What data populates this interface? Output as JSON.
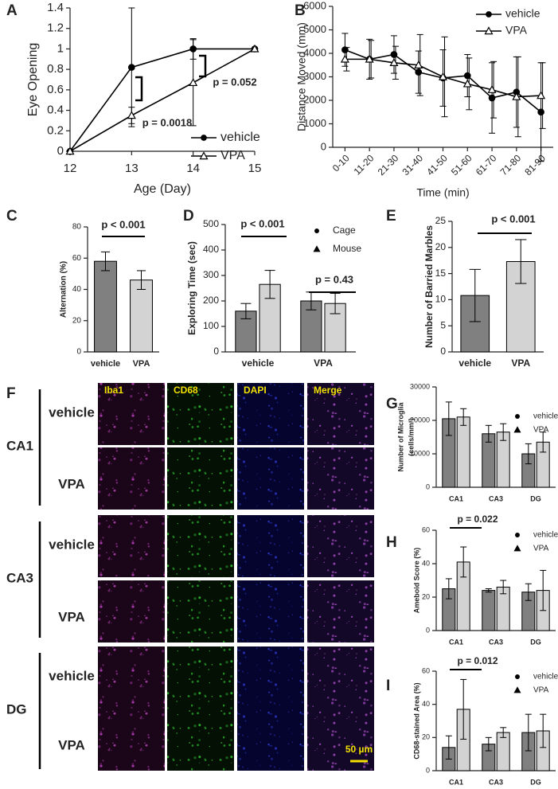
{
  "chart_data": [
    {
      "type": "line",
      "panel": "A",
      "xlabel": "Age (Day)",
      "ylabel": "Eye Opening",
      "x": [
        12,
        13,
        14,
        15
      ],
      "xlim": [
        12,
        15
      ],
      "xticks": [
        12,
        13,
        14,
        15
      ],
      "ylim": [
        0,
        1.4
      ],
      "yticks": [
        0,
        0.2,
        0.4,
        0.6,
        0.8,
        1,
        1.2,
        1.4
      ],
      "series": [
        {
          "name": "vehicle",
          "color": "#000000",
          "marker": "circle",
          "values": [
            0,
            0.82,
            1,
            1
          ],
          "errors": [
            0,
            0.58,
            0.1,
            0
          ]
        },
        {
          "name": "VPA",
          "color": "#000000",
          "marker": "triangle",
          "values": [
            0,
            0.35,
            0.67,
            1
          ],
          "errors": [
            0,
            0.08,
            0.42,
            0
          ]
        }
      ],
      "annotations": [
        "p = 0.0018",
        "p = 0.052"
      ]
    },
    {
      "type": "line",
      "panel": "B",
      "xlabel": "Time (min)",
      "ylabel": "Distance Moved (mm)",
      "categories": [
        "0-10",
        "11-20",
        "21-30",
        "31-40",
        "41-50",
        "51-60",
        "61-70",
        "71-80",
        "81-90"
      ],
      "ylim": [
        0,
        6000
      ],
      "yticks": [
        0,
        1000,
        2000,
        3000,
        4000,
        5000,
        6000
      ],
      "series": [
        {
          "name": "vehicle",
          "color": "#000000",
          "marker": "circle",
          "values": [
            4150,
            3750,
            3950,
            3200,
            2950,
            3050,
            2100,
            2350,
            1500
          ],
          "errors": [
            700,
            850,
            800,
            900,
            1200,
            900,
            1500,
            1500,
            2100
          ]
        },
        {
          "name": "VPA",
          "color": "#000000",
          "marker": "triangle",
          "values": [
            3750,
            3750,
            3600,
            3500,
            3000,
            2700,
            2450,
            2150,
            2200
          ],
          "errors": [
            500,
            800,
            700,
            1300,
            1700,
            1100,
            1200,
            1700,
            1400
          ]
        }
      ],
      "annotations": []
    },
    {
      "type": "bar",
      "panel": "C",
      "ylabel": "Alternation (%)",
      "categories": [
        "vehicle",
        "VPA"
      ],
      "values": [
        58,
        46
      ],
      "errors": [
        6,
        6
      ],
      "colors": [
        "#808080",
        "#d3d3d3"
      ],
      "ylim": [
        0,
        80
      ],
      "yticks": [
        0,
        20,
        40,
        60,
        80
      ],
      "annotations": [
        "p < 0.001"
      ]
    },
    {
      "type": "bar",
      "panel": "D",
      "ylabel": "Exploring Time (sec)",
      "categories": [
        "vehicle",
        "VPA"
      ],
      "series": [
        {
          "name": "Cage",
          "color": "#808080",
          "marker": "circle",
          "values": [
            160,
            200
          ],
          "errors": [
            30,
            35
          ]
        },
        {
          "name": "Mouse",
          "color": "#d3d3d3",
          "marker": "triangle-filled",
          "values": [
            265,
            190
          ],
          "errors": [
            55,
            40
          ]
        }
      ],
      "ylim": [
        0,
        500
      ],
      "yticks": [
        0,
        100,
        200,
        300,
        400,
        500
      ],
      "annotations": [
        "p < 0.001",
        "p = 0.43"
      ]
    },
    {
      "type": "bar",
      "panel": "E",
      "ylabel": "Number of Barried Marbles",
      "categories": [
        "vehicle",
        "VPA"
      ],
      "values": [
        10.8,
        17.3
      ],
      "errors": [
        5,
        4.2
      ],
      "colors": [
        "#808080",
        "#d3d3d3"
      ],
      "ylim": [
        0,
        25
      ],
      "yticks": [
        0,
        5,
        10,
        15,
        20,
        25
      ],
      "annotations": [
        "p < 0.001"
      ]
    },
    {
      "type": "bar",
      "panel": "G",
      "ylabel": [
        "Number of Microglia",
        "(cells/mm³)"
      ],
      "categories": [
        "CA1",
        "CA3",
        "DG"
      ],
      "series": [
        {
          "name": "vehicle",
          "color": "#808080",
          "marker": "circle",
          "values": [
            20500,
            16000,
            10000
          ],
          "errors": [
            5000,
            2500,
            3000
          ]
        },
        {
          "name": "VPA",
          "color": "#d3d3d3",
          "marker": "triangle-filled",
          "values": [
            21000,
            16500,
            13500
          ],
          "errors": [
            2500,
            2500,
            3000
          ]
        }
      ],
      "ylim": [
        0,
        30000
      ],
      "yticks": [
        0,
        10000,
        20000,
        30000
      ],
      "annotations": []
    },
    {
      "type": "bar",
      "panel": "H",
      "ylabel": "Ameboid Score (%)",
      "categories": [
        "CA1",
        "CA3",
        "DG"
      ],
      "series": [
        {
          "name": "vehicle",
          "color": "#808080",
          "marker": "circle",
          "values": [
            25,
            24,
            23
          ],
          "errors": [
            6,
            1,
            5
          ]
        },
        {
          "name": "VPA",
          "color": "#d3d3d3",
          "marker": "triangle-filled",
          "values": [
            41,
            26,
            24
          ],
          "errors": [
            9,
            4,
            12
          ]
        }
      ],
      "ylim": [
        0,
        60
      ],
      "yticks": [
        0,
        20,
        40,
        60
      ],
      "annotations": [
        "p = 0.022"
      ]
    },
    {
      "type": "bar",
      "panel": "I",
      "ylabel": "CD68-stained Area (%)",
      "categories": [
        "CA1",
        "CA3",
        "DG"
      ],
      "series": [
        {
          "name": "vehicle",
          "color": "#808080",
          "marker": "circle",
          "values": [
            14,
            16,
            23
          ],
          "errors": [
            7,
            4,
            11
          ]
        },
        {
          "name": "VPA",
          "color": "#d3d3d3",
          "marker": "triangle-filled",
          "values": [
            37,
            23,
            24
          ],
          "errors": [
            18,
            3,
            10
          ]
        }
      ],
      "ylim": [
        0,
        60
      ],
      "yticks": [
        0,
        20,
        40,
        60
      ],
      "annotations": [
        "p = 0.012"
      ]
    }
  ],
  "figure_F": {
    "panel": "F",
    "columns": [
      "Iba1",
      "CD68",
      "DAPI",
      "Merge"
    ],
    "regions": [
      {
        "name": "CA1",
        "rows": [
          "vehicle",
          "VPA"
        ]
      },
      {
        "name": "CA3",
        "rows": [
          "vehicle",
          "VPA"
        ]
      },
      {
        "name": "DG",
        "rows": [
          "vehicle",
          "VPA"
        ]
      }
    ],
    "scale_bar": "50 µm"
  }
}
